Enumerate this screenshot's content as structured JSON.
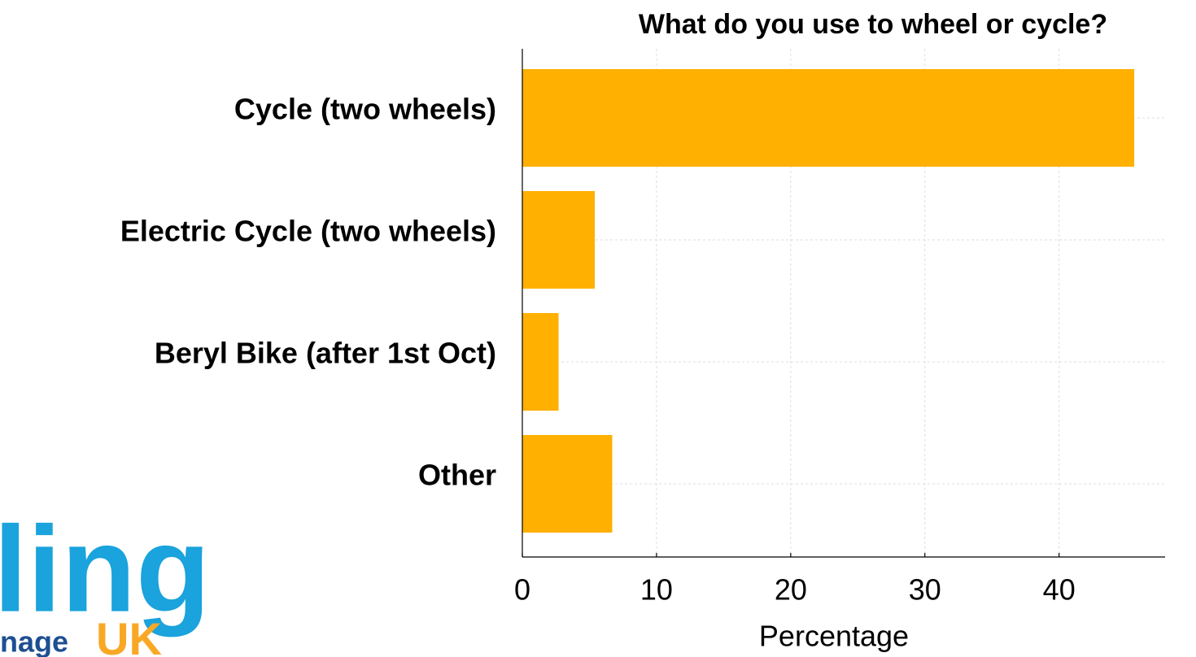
{
  "chart_data": {
    "type": "barh",
    "title": "What do you use to wheel or cycle?",
    "categories": [
      "Cycle (two wheels)",
      "Electric Cycle (two wheels)",
      "Beryl Bike (after 1st Oct)",
      "Other"
    ],
    "values": [
      45.6,
      5.4,
      2.7,
      6.7
    ],
    "color": "#ffb000",
    "xlabel": "Percentage",
    "xlim": [
      0,
      47.9
    ],
    "xticks": [
      0,
      10,
      20,
      30,
      40
    ],
    "grid": true
  },
  "logo": {
    "word": "ling",
    "sub": "nage",
    "uk": "UK"
  }
}
